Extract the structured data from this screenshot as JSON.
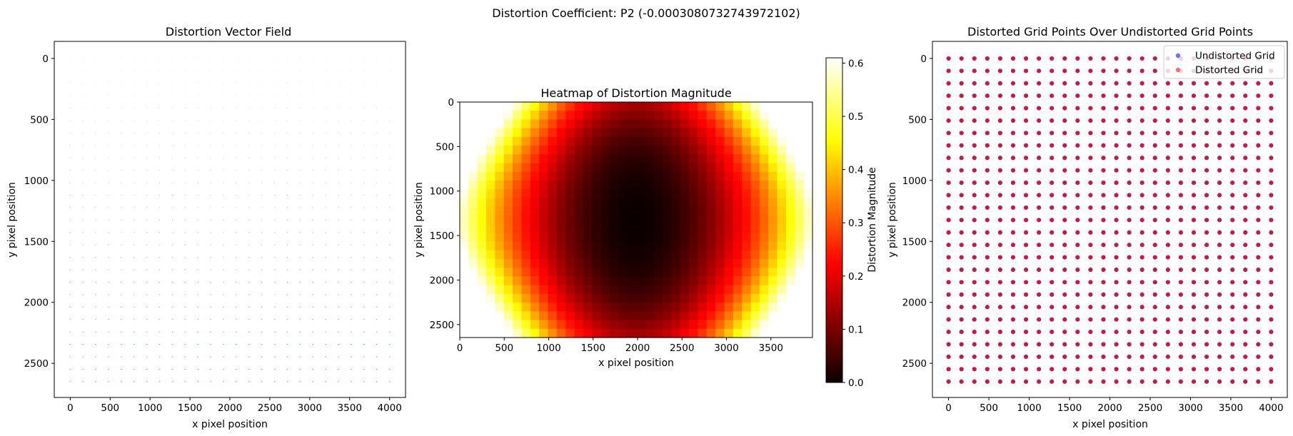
{
  "figure": {
    "suptitle": "Distortion Coefficient: P2 (-0.0003080732743972102)"
  },
  "chart_data": [
    {
      "type": "scatter",
      "title": "Distortion Vector Field",
      "xlabel": "x pixel position",
      "ylabel": "y pixel position",
      "xlim": [
        -200,
        4200
      ],
      "ylim": [
        2780,
        -140
      ],
      "y_inverted": true,
      "xticks": [
        0,
        500,
        1000,
        1500,
        2000,
        2500,
        3000,
        3500,
        4000
      ],
      "yticks": [
        0,
        500,
        1000,
        1500,
        2000,
        2500
      ],
      "grid_x": {
        "start": 0,
        "stop": 4000,
        "count": 26
      },
      "grid_y": {
        "start": 0,
        "stop": 2650,
        "count": 27
      },
      "grid": false,
      "colors": {
        "vectors": "#ff0000"
      }
    },
    {
      "type": "heatmap",
      "title": "Heatmap of Distortion Magnitude",
      "xlabel": "x pixel position",
      "ylabel": "y pixel position",
      "extent": [
        0,
        3968,
        2646,
        0
      ],
      "xticks": [
        0,
        500,
        1000,
        1500,
        2000,
        2500,
        3000,
        3500
      ],
      "yticks": [
        0,
        500,
        1000,
        1500,
        2000,
        2500
      ],
      "cells": {
        "nx": 40,
        "ny": 27
      },
      "center": [
        1984,
        1323
      ],
      "model": "tangential P2",
      "colormap": "hot",
      "colorbar": {
        "label": "Distortion Magnitude",
        "range": [
          0.0,
          0.61
        ],
        "ticks": [
          0.0,
          0.1,
          0.2,
          0.3,
          0.4,
          0.5,
          0.6
        ]
      },
      "grid": false
    },
    {
      "type": "scatter",
      "title": "Distorted Grid Points Over Undistorted Grid Points",
      "xlabel": "x pixel position",
      "ylabel": "y pixel position",
      "xlim": [
        -200,
        4200
      ],
      "ylim": [
        2780,
        -140
      ],
      "y_inverted": true,
      "xticks": [
        0,
        500,
        1000,
        1500,
        2000,
        2500,
        3000,
        3500,
        4000
      ],
      "yticks": [
        0,
        500,
        1000,
        1500,
        2000,
        2500
      ],
      "grid_x": {
        "start": 0,
        "stop": 4000,
        "count": 26
      },
      "grid_y": {
        "start": 0,
        "stop": 2650,
        "count": 27
      },
      "series": [
        {
          "name": "Undistorted Grid",
          "color": "#4040ff"
        },
        {
          "name": "Distorted Grid",
          "color": "#ff4040"
        }
      ],
      "point_color": "#c8174a",
      "legend": "top-right",
      "grid": false
    }
  ]
}
